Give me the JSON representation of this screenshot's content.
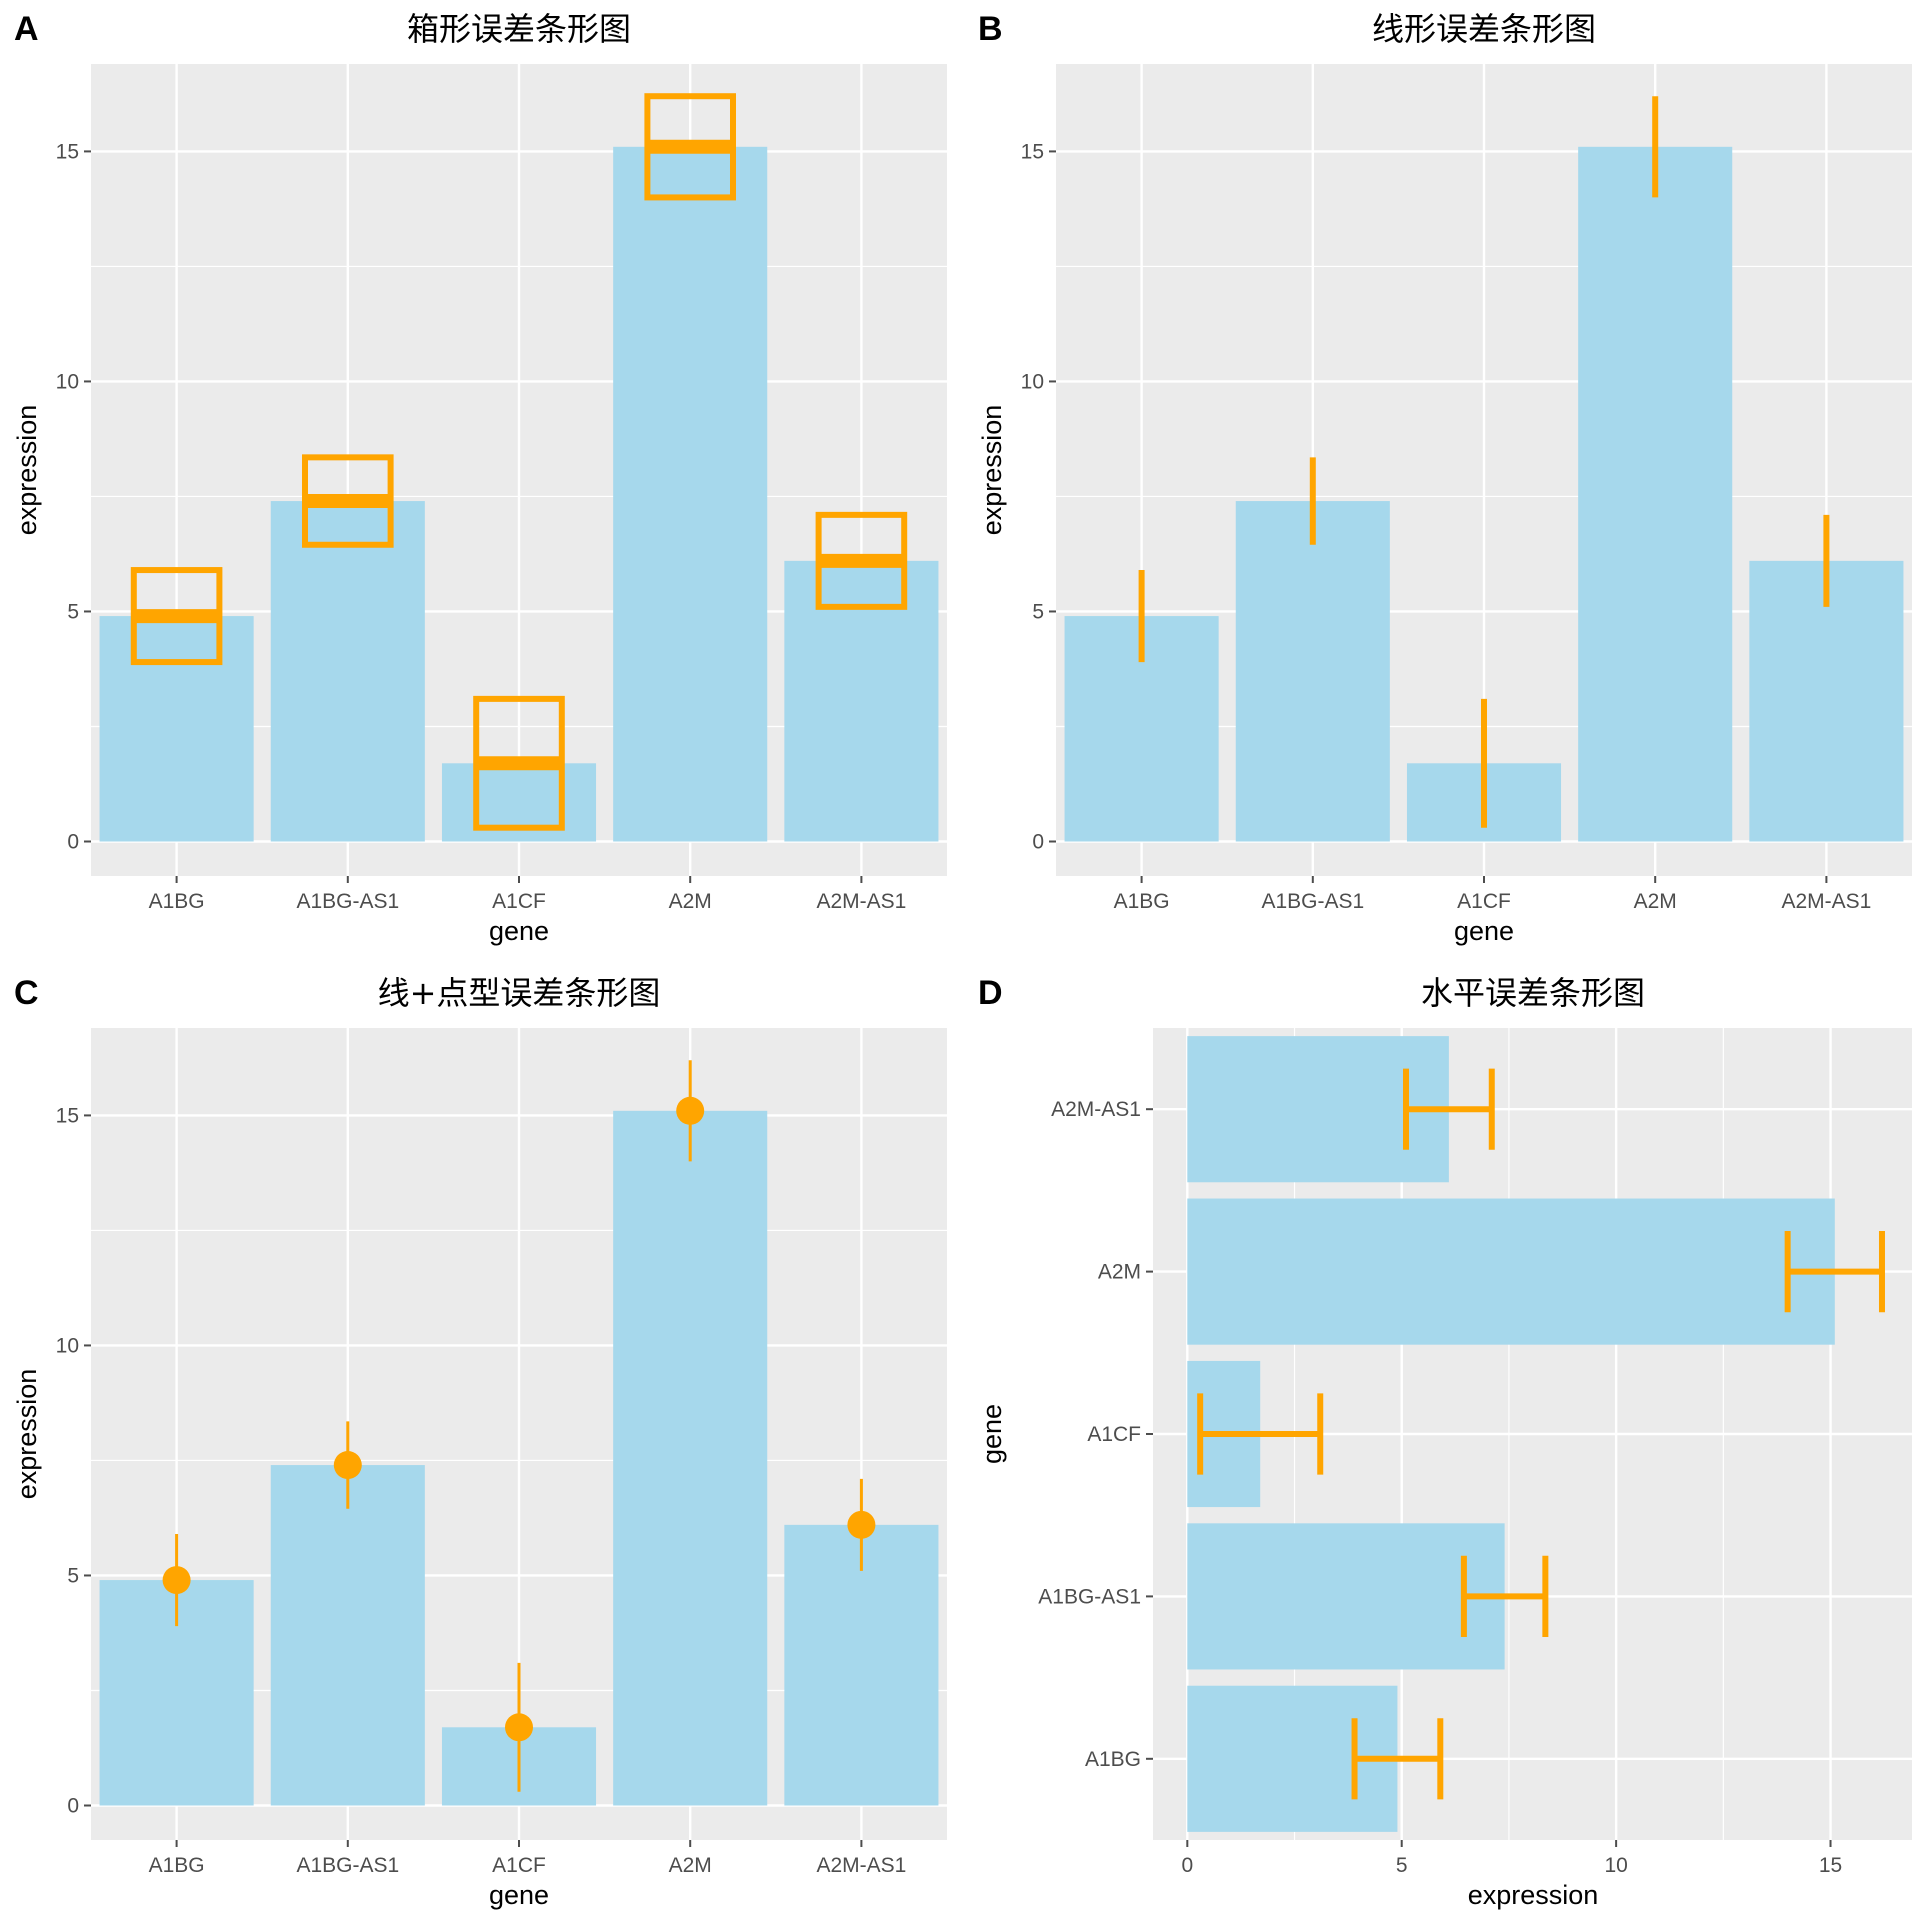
{
  "colors": {
    "panel_bg": "#EBEBEB",
    "grid": "#FFFFFF",
    "bar_fill": "#A6D8EC",
    "error": "#FFA500",
    "tick": "#4D4D4D"
  },
  "chart_data": [
    {
      "letter": "A",
      "type": "bar",
      "error_style": "crossbar",
      "orientation": "vertical",
      "title": "箱形误差条形图",
      "xlabel": "gene",
      "ylabel": "expression",
      "categories": [
        "A1BG",
        "A1BG-AS1",
        "A1CF",
        "A2M",
        "A2M-AS1"
      ],
      "values": [
        4.9,
        7.4,
        1.7,
        15.1,
        6.1
      ],
      "error": [
        1.0,
        0.95,
        1.4,
        1.1,
        1.0
      ],
      "ylim": [
        -0.75,
        16.9
      ],
      "yticks": [
        0,
        5,
        10,
        15
      ],
      "grid": true,
      "legend": "none"
    },
    {
      "letter": "B",
      "type": "bar",
      "error_style": "linerange",
      "orientation": "vertical",
      "title": "线形误差条形图",
      "xlabel": "gene",
      "ylabel": "expression",
      "categories": [
        "A1BG",
        "A1BG-AS1",
        "A1CF",
        "A2M",
        "A2M-AS1"
      ],
      "values": [
        4.9,
        7.4,
        1.7,
        15.1,
        6.1
      ],
      "error": [
        1.0,
        0.95,
        1.4,
        1.1,
        1.0
      ],
      "ylim": [
        -0.75,
        16.9
      ],
      "yticks": [
        0,
        5,
        10,
        15
      ],
      "grid": true,
      "legend": "none"
    },
    {
      "letter": "C",
      "type": "bar",
      "error_style": "pointrange",
      "orientation": "vertical",
      "title": "线+点型误差条形图",
      "xlabel": "gene",
      "ylabel": "expression",
      "categories": [
        "A1BG",
        "A1BG-AS1",
        "A1CF",
        "A2M",
        "A2M-AS1"
      ],
      "values": [
        4.9,
        7.4,
        1.7,
        15.1,
        6.1
      ],
      "error": [
        1.0,
        0.95,
        1.4,
        1.1,
        1.0
      ],
      "ylim": [
        -0.75,
        16.9
      ],
      "yticks": [
        0,
        5,
        10,
        15
      ],
      "grid": true,
      "legend": "none"
    },
    {
      "letter": "D",
      "type": "bar",
      "error_style": "errorbarh",
      "orientation": "horizontal",
      "title": "水平误差条形图",
      "xlabel": "expression",
      "ylabel": "gene",
      "categories": [
        "A1BG",
        "A1BG-AS1",
        "A1CF",
        "A2M",
        "A2M-AS1"
      ],
      "values": [
        4.9,
        7.4,
        1.7,
        15.1,
        6.1
      ],
      "error": [
        1.0,
        0.95,
        1.4,
        1.1,
        1.0
      ],
      "xlim": [
        -0.8,
        16.9
      ],
      "xticks": [
        0,
        5,
        10,
        15
      ],
      "grid": true,
      "legend": "none"
    }
  ]
}
